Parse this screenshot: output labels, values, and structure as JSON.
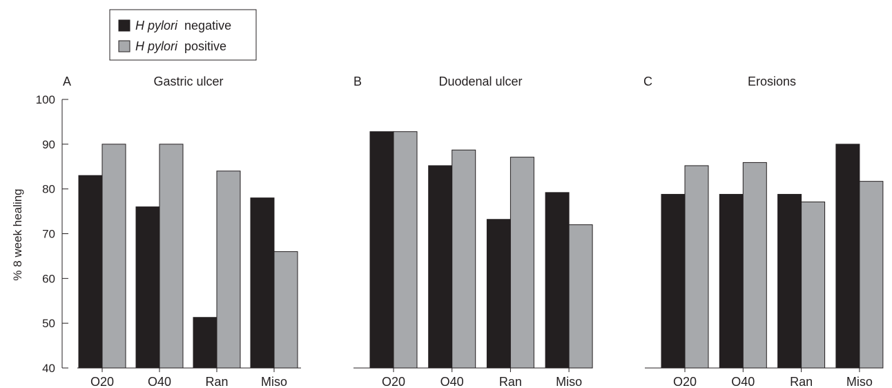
{
  "legend": {
    "items": [
      {
        "prefix": "H pylori",
        "suffix": "negative",
        "color": "#231f20"
      },
      {
        "prefix": "H pylori",
        "suffix": "positive",
        "color": "#a7a9ac"
      }
    ]
  },
  "chart_data": [
    {
      "type": "bar",
      "panel_letter": "A",
      "title": "Gastric ulcer",
      "ylabel": "% 8 week healing",
      "ylim": [
        40,
        100
      ],
      "yticks": [
        40,
        50,
        60,
        70,
        80,
        90,
        100
      ],
      "categories": [
        "O20",
        "O40",
        "Ran",
        "Miso"
      ],
      "series": [
        {
          "name": "H pylori negative",
          "values": [
            83,
            76,
            51.3,
            78
          ]
        },
        {
          "name": "H pylori positive",
          "values": [
            90,
            90,
            84,
            66
          ]
        }
      ]
    },
    {
      "type": "bar",
      "panel_letter": "B",
      "title": "Duodenal ulcer",
      "ylim": [
        40,
        100
      ],
      "categories": [
        "O20",
        "O40",
        "Ran",
        "Miso"
      ],
      "series": [
        {
          "name": "H pylori negative",
          "values": [
            92.8,
            85.2,
            73.2,
            79.2
          ]
        },
        {
          "name": "H pylori positive",
          "values": [
            92.8,
            88.7,
            87.1,
            72
          ]
        }
      ]
    },
    {
      "type": "bar",
      "panel_letter": "C",
      "title": "Erosions",
      "ylim": [
        40,
        100
      ],
      "categories": [
        "O20",
        "O40",
        "Ran",
        "Miso"
      ],
      "series": [
        {
          "name": "H pylori negative",
          "values": [
            78.8,
            78.8,
            78.8,
            90
          ]
        },
        {
          "name": "H pylori positive",
          "values": [
            85.2,
            85.9,
            77.1,
            81.7
          ]
        }
      ]
    }
  ]
}
